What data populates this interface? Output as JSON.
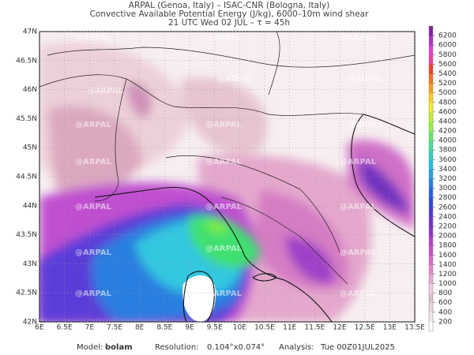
{
  "header": {
    "line1": "ARPAL (Genoa, Italy)  –  ISAC-CNR (Bologna, Italy)",
    "line2": "Convective Available Potential Energy (J/kg), 6000–10m wind shear",
    "line3": "21 UTC Wed 02 JUL  –  τ = 45h"
  },
  "map": {
    "watermark": "@ARPAL",
    "xlim": [
      6,
      13.5
    ],
    "ylim": [
      42,
      47
    ],
    "lon_ticks": [
      {
        "value": 6,
        "label": "6E"
      },
      {
        "value": 6.5,
        "label": "6.5E"
      },
      {
        "value": 7,
        "label": "7E"
      },
      {
        "value": 7.5,
        "label": "7.5E"
      },
      {
        "value": 8,
        "label": "8E"
      },
      {
        "value": 8.5,
        "label": "8.5E"
      },
      {
        "value": 9,
        "label": "9E"
      },
      {
        "value": 9.5,
        "label": "9.5E"
      },
      {
        "value": 10,
        "label": "10E"
      },
      {
        "value": 10.5,
        "label": "10.5E"
      },
      {
        "value": 11,
        "label": "11E"
      },
      {
        "value": 11.5,
        "label": "11.5E"
      },
      {
        "value": 12,
        "label": "12E"
      },
      {
        "value": 12.5,
        "label": "12.5E"
      },
      {
        "value": 13,
        "label": "13E"
      },
      {
        "value": 13.5,
        "label": "13.5E"
      }
    ],
    "lat_ticks": [
      {
        "value": 42,
        "label": "42N"
      },
      {
        "value": 42.5,
        "label": "42.5N"
      },
      {
        "value": 43,
        "label": "43N"
      },
      {
        "value": 43.5,
        "label": "43.5N"
      },
      {
        "value": 44,
        "label": "44N"
      },
      {
        "value": 44.5,
        "label": "44.5N"
      },
      {
        "value": 45,
        "label": "45N"
      },
      {
        "value": 45.5,
        "label": "45.5N"
      },
      {
        "value": 46,
        "label": "46N"
      },
      {
        "value": 46.5,
        "label": "46.5N"
      },
      {
        "value": 47,
        "label": "47N"
      }
    ]
  },
  "colorbar": {
    "levels": [
      200,
      400,
      600,
      800,
      1000,
      1200,
      1400,
      1600,
      1800,
      2000,
      2200,
      2400,
      2600,
      2800,
      3000,
      3200,
      3400,
      3600,
      3800,
      4000,
      4200,
      4400,
      4600,
      4800,
      5000,
      5200,
      5400,
      5600,
      5800,
      6000,
      6200
    ],
    "colors": [
      "#ffffff",
      "#f2e6ea",
      "#e8d4dc",
      "#dcc0cc",
      "#f0c8e0",
      "#e8a8d4",
      "#e088cc",
      "#d868c8",
      "#c850c8",
      "#b040c8",
      "#9030c8",
      "#7030c8",
      "#5038d0",
      "#3048d8",
      "#2060e0",
      "#2080e0",
      "#20a0e0",
      "#20c0e0",
      "#30d0c0",
      "#40e090",
      "#60e860",
      "#90f040",
      "#c0f030",
      "#f0f020",
      "#f8d020",
      "#f8a020",
      "#f87020",
      "#f04020",
      "#f040a0",
      "#e040d0",
      "#b030c0",
      "#8020a0"
    ]
  },
  "footer": {
    "model_label": "Model:",
    "model": "bolam",
    "resolution_label": "Resolution:",
    "resolution": "0.104°x0.074°",
    "analysis_label": "Analysis:",
    "analysis": "Tue 00Z01JUL2025"
  }
}
